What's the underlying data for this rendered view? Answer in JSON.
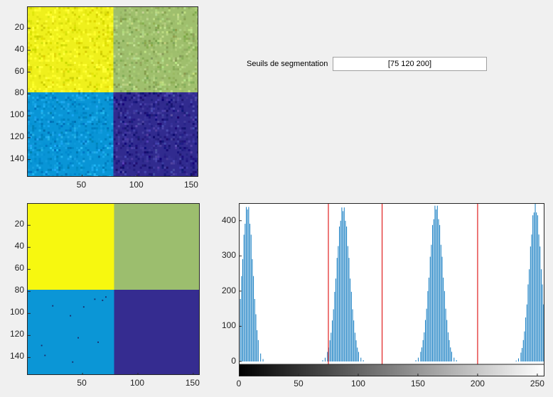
{
  "input": {
    "label": "Seuils de segmentation",
    "value": "[75 120 200]"
  },
  "colors": {
    "quadrant_top_left": "#eff01c",
    "quadrant_top_right": "#9fbf6d",
    "quadrant_bottom_left": "#0995d6",
    "quadrant_bottom_right": "#312b8f",
    "seg_top_left": "#f7f80f",
    "seg_top_right": "#9cbe6e",
    "seg_bottom_left": "#0b96d6",
    "seg_bottom_right": "#352c90",
    "histogram_bar": "#0072bd",
    "threshold_line": "#e02020"
  },
  "images": {
    "original": {
      "yticks": [
        "20",
        "40",
        "60",
        "80",
        "100",
        "120",
        "140"
      ],
      "xticks": [
        "50",
        "100",
        "150"
      ],
      "ylim": [
        0.5,
        156.5
      ],
      "xlim": [
        0.5,
        156.5
      ]
    },
    "segmented": {
      "yticks": [
        "20",
        "40",
        "60",
        "80",
        "100",
        "120",
        "140"
      ],
      "xticks": [
        "50",
        "100",
        "150"
      ],
      "ylim": [
        0.5,
        156.5
      ],
      "xlim": [
        0.5,
        156.5
      ]
    }
  },
  "chart_data": {
    "type": "bar",
    "xlim": [
      0,
      256
    ],
    "ylim": [
      0,
      450
    ],
    "xticks": [
      "0",
      "50",
      "100",
      "150",
      "200",
      "250"
    ],
    "yticks": [
      "0",
      "100",
      "200",
      "300",
      "400"
    ],
    "thresholds": [
      75,
      120,
      200
    ],
    "peaks": [
      {
        "center": 7,
        "sigma": 4.5,
        "height": 450
      },
      {
        "center": 87,
        "sigma": 5.5,
        "height": 445
      },
      {
        "center": 165,
        "sigma": 5.5,
        "height": 450
      },
      {
        "center": 248,
        "sigma": 5,
        "height": 450
      }
    ],
    "colorbar": "grayscale 0-255"
  }
}
